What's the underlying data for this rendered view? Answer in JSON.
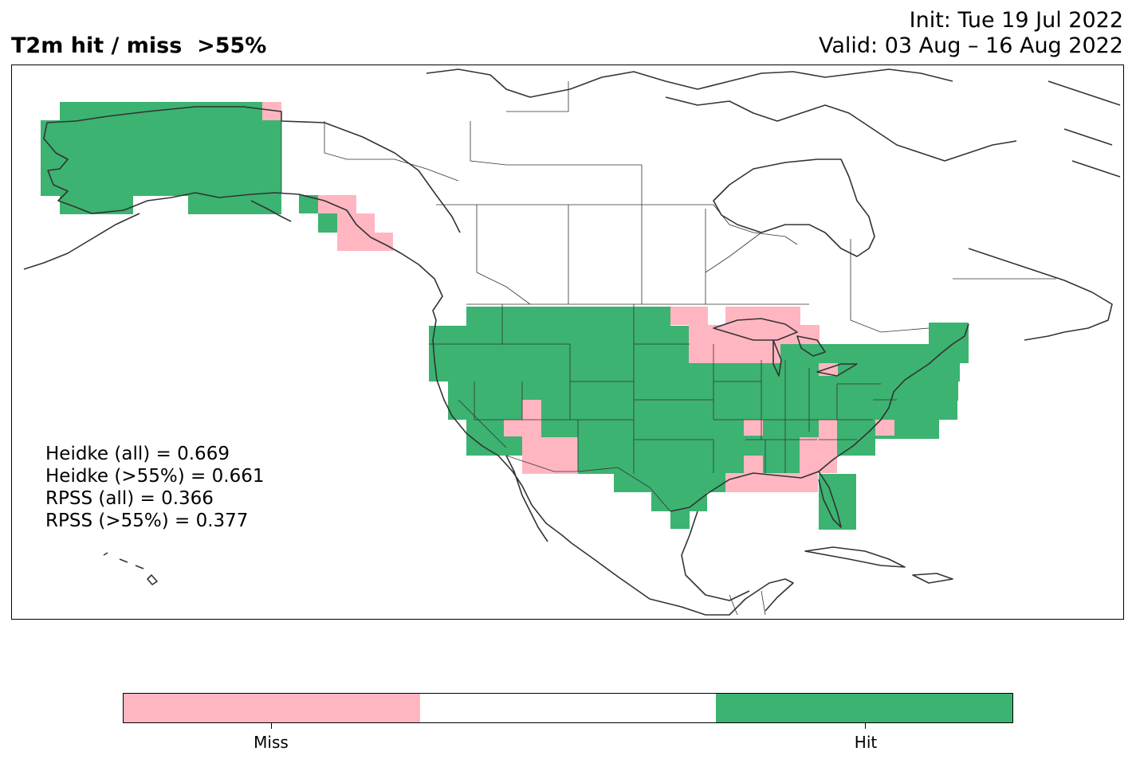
{
  "title": "T2m hit / miss  >55%",
  "init": "Init: Tue 19 Jul 2022",
  "valid": "Valid: 03 Aug – 16 Aug 2022",
  "stats": {
    "heidke_all": "Heidke (all) = 0.669",
    "heidke_55": "Heidke (>55%) = 0.661",
    "rpss_all": "RPSS (all) = 0.366",
    "rpss_55": "RPSS (>55%) = 0.377"
  },
  "colors": {
    "miss": "#ffb6c1",
    "neutral": "#ffffff",
    "hit": "#3cb371",
    "coast": "#333333"
  },
  "legend": {
    "miss_label": "Miss",
    "hit_label": "Hit"
  }
}
